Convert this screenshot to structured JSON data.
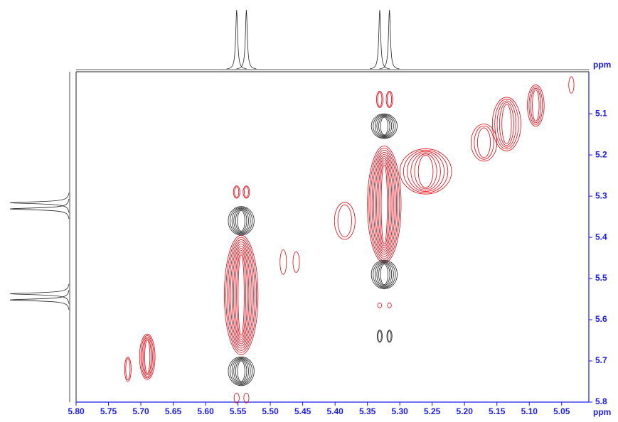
{
  "chart_data": {
    "type": "contour",
    "x_label": "ppm",
    "y_label": "ppm",
    "xlim": [
      5.8,
      5.008
    ],
    "ylim": [
      4.998,
      5.8
    ],
    "xticks": [
      {
        "value": 5.8,
        "label": "5.80"
      },
      5.75,
      {
        "value": 5.7,
        "label": "5.70"
      },
      5.65,
      {
        "value": 5.6,
        "label": "5.60"
      },
      5.55,
      {
        "value": 5.5,
        "label": "5.50"
      },
      5.45,
      {
        "value": 5.4,
        "label": "5.40"
      },
      5.35,
      {
        "value": 5.3,
        "label": "5.30"
      },
      5.25,
      {
        "value": 5.2,
        "label": "5.20"
      },
      5.15,
      {
        "value": 5.1,
        "label": "5.10"
      },
      5.05
    ],
    "yticks": [
      5.1,
      5.2,
      5.3,
      5.4,
      5.5,
      5.6,
      5.7,
      5.8
    ],
    "projection_peaks": [
      5.552,
      5.537,
      5.331,
      5.316
    ],
    "peaks": [
      {
        "x": 5.545,
        "y": 5.54,
        "rx": 0.026,
        "ry": 0.145,
        "levels": 10,
        "color": "#e8000b"
      },
      {
        "x": 5.324,
        "y": 5.32,
        "rx": 0.026,
        "ry": 0.142,
        "levels": 10,
        "color": "#e8000b"
      },
      {
        "x": 5.69,
        "y": 5.69,
        "rx": 0.012,
        "ry": 0.055,
        "levels": 5,
        "color": "#e8000b"
      },
      {
        "x": 5.72,
        "y": 5.72,
        "rx": 0.005,
        "ry": 0.03,
        "levels": 2,
        "color": "#e8000b"
      },
      {
        "x": 5.48,
        "y": 5.46,
        "rx": 0.005,
        "ry": 0.03,
        "levels": 1,
        "color": "#e8000b"
      },
      {
        "x": 5.46,
        "y": 5.46,
        "rx": 0.005,
        "ry": 0.025,
        "levels": 1,
        "color": "#e8000b"
      },
      {
        "x": 5.385,
        "y": 5.36,
        "rx": 0.016,
        "ry": 0.045,
        "levels": 2,
        "color": "#e8000b"
      },
      {
        "x": 5.26,
        "y": 5.24,
        "rx": 0.04,
        "ry": 0.055,
        "levels": 6,
        "color": "#e8000b"
      },
      {
        "x": 5.17,
        "y": 5.17,
        "rx": 0.02,
        "ry": 0.045,
        "levels": 3,
        "color": "#e8000b"
      },
      {
        "x": 5.135,
        "y": 5.125,
        "rx": 0.022,
        "ry": 0.065,
        "levels": 5,
        "color": "#e8000b"
      },
      {
        "x": 5.09,
        "y": 5.08,
        "rx": 0.013,
        "ry": 0.05,
        "levels": 4,
        "color": "#e8000b"
      },
      {
        "x": 5.035,
        "y": 5.03,
        "rx": 0.004,
        "ry": 0.02,
        "levels": 1,
        "color": "#e8000b"
      },
      {
        "x": 5.552,
        "y": 5.29,
        "rx": 0.005,
        "ry": 0.015,
        "levels": 2,
        "color": "#e8000b"
      },
      {
        "x": 5.537,
        "y": 5.29,
        "rx": 0.005,
        "ry": 0.015,
        "levels": 2,
        "color": "#e8000b"
      },
      {
        "x": 5.331,
        "y": 5.065,
        "rx": 0.005,
        "ry": 0.02,
        "levels": 2,
        "color": "#e8000b"
      },
      {
        "x": 5.316,
        "y": 5.065,
        "rx": 0.005,
        "ry": 0.02,
        "levels": 2,
        "color": "#e8000b"
      },
      {
        "x": 5.331,
        "y": 5.565,
        "rx": 0.003,
        "ry": 0.006,
        "levels": 1,
        "color": "#e8000b"
      },
      {
        "x": 5.316,
        "y": 5.565,
        "rx": 0.003,
        "ry": 0.006,
        "levels": 1,
        "color": "#e8000b"
      },
      {
        "x": 5.552,
        "y": 5.79,
        "rx": 0.004,
        "ry": 0.012,
        "levels": 1,
        "color": "#e8000b"
      },
      {
        "x": 5.537,
        "y": 5.79,
        "rx": 0.004,
        "ry": 0.012,
        "levels": 1,
        "color": "#e8000b"
      },
      {
        "x": 5.545,
        "y": 5.36,
        "rx": 0.02,
        "ry": 0.035,
        "levels": 6,
        "color": "#222222"
      },
      {
        "x": 5.545,
        "y": 5.725,
        "rx": 0.02,
        "ry": 0.035,
        "levels": 6,
        "color": "#222222"
      },
      {
        "x": 5.324,
        "y": 5.13,
        "rx": 0.02,
        "ry": 0.03,
        "levels": 6,
        "color": "#222222"
      },
      {
        "x": 5.324,
        "y": 5.49,
        "rx": 0.02,
        "ry": 0.035,
        "levels": 6,
        "color": "#222222"
      },
      {
        "x": 5.331,
        "y": 5.64,
        "rx": 0.004,
        "ry": 0.015,
        "levels": 2,
        "color": "#222222"
      },
      {
        "x": 5.316,
        "y": 5.64,
        "rx": 0.004,
        "ry": 0.015,
        "levels": 2,
        "color": "#222222"
      }
    ]
  }
}
